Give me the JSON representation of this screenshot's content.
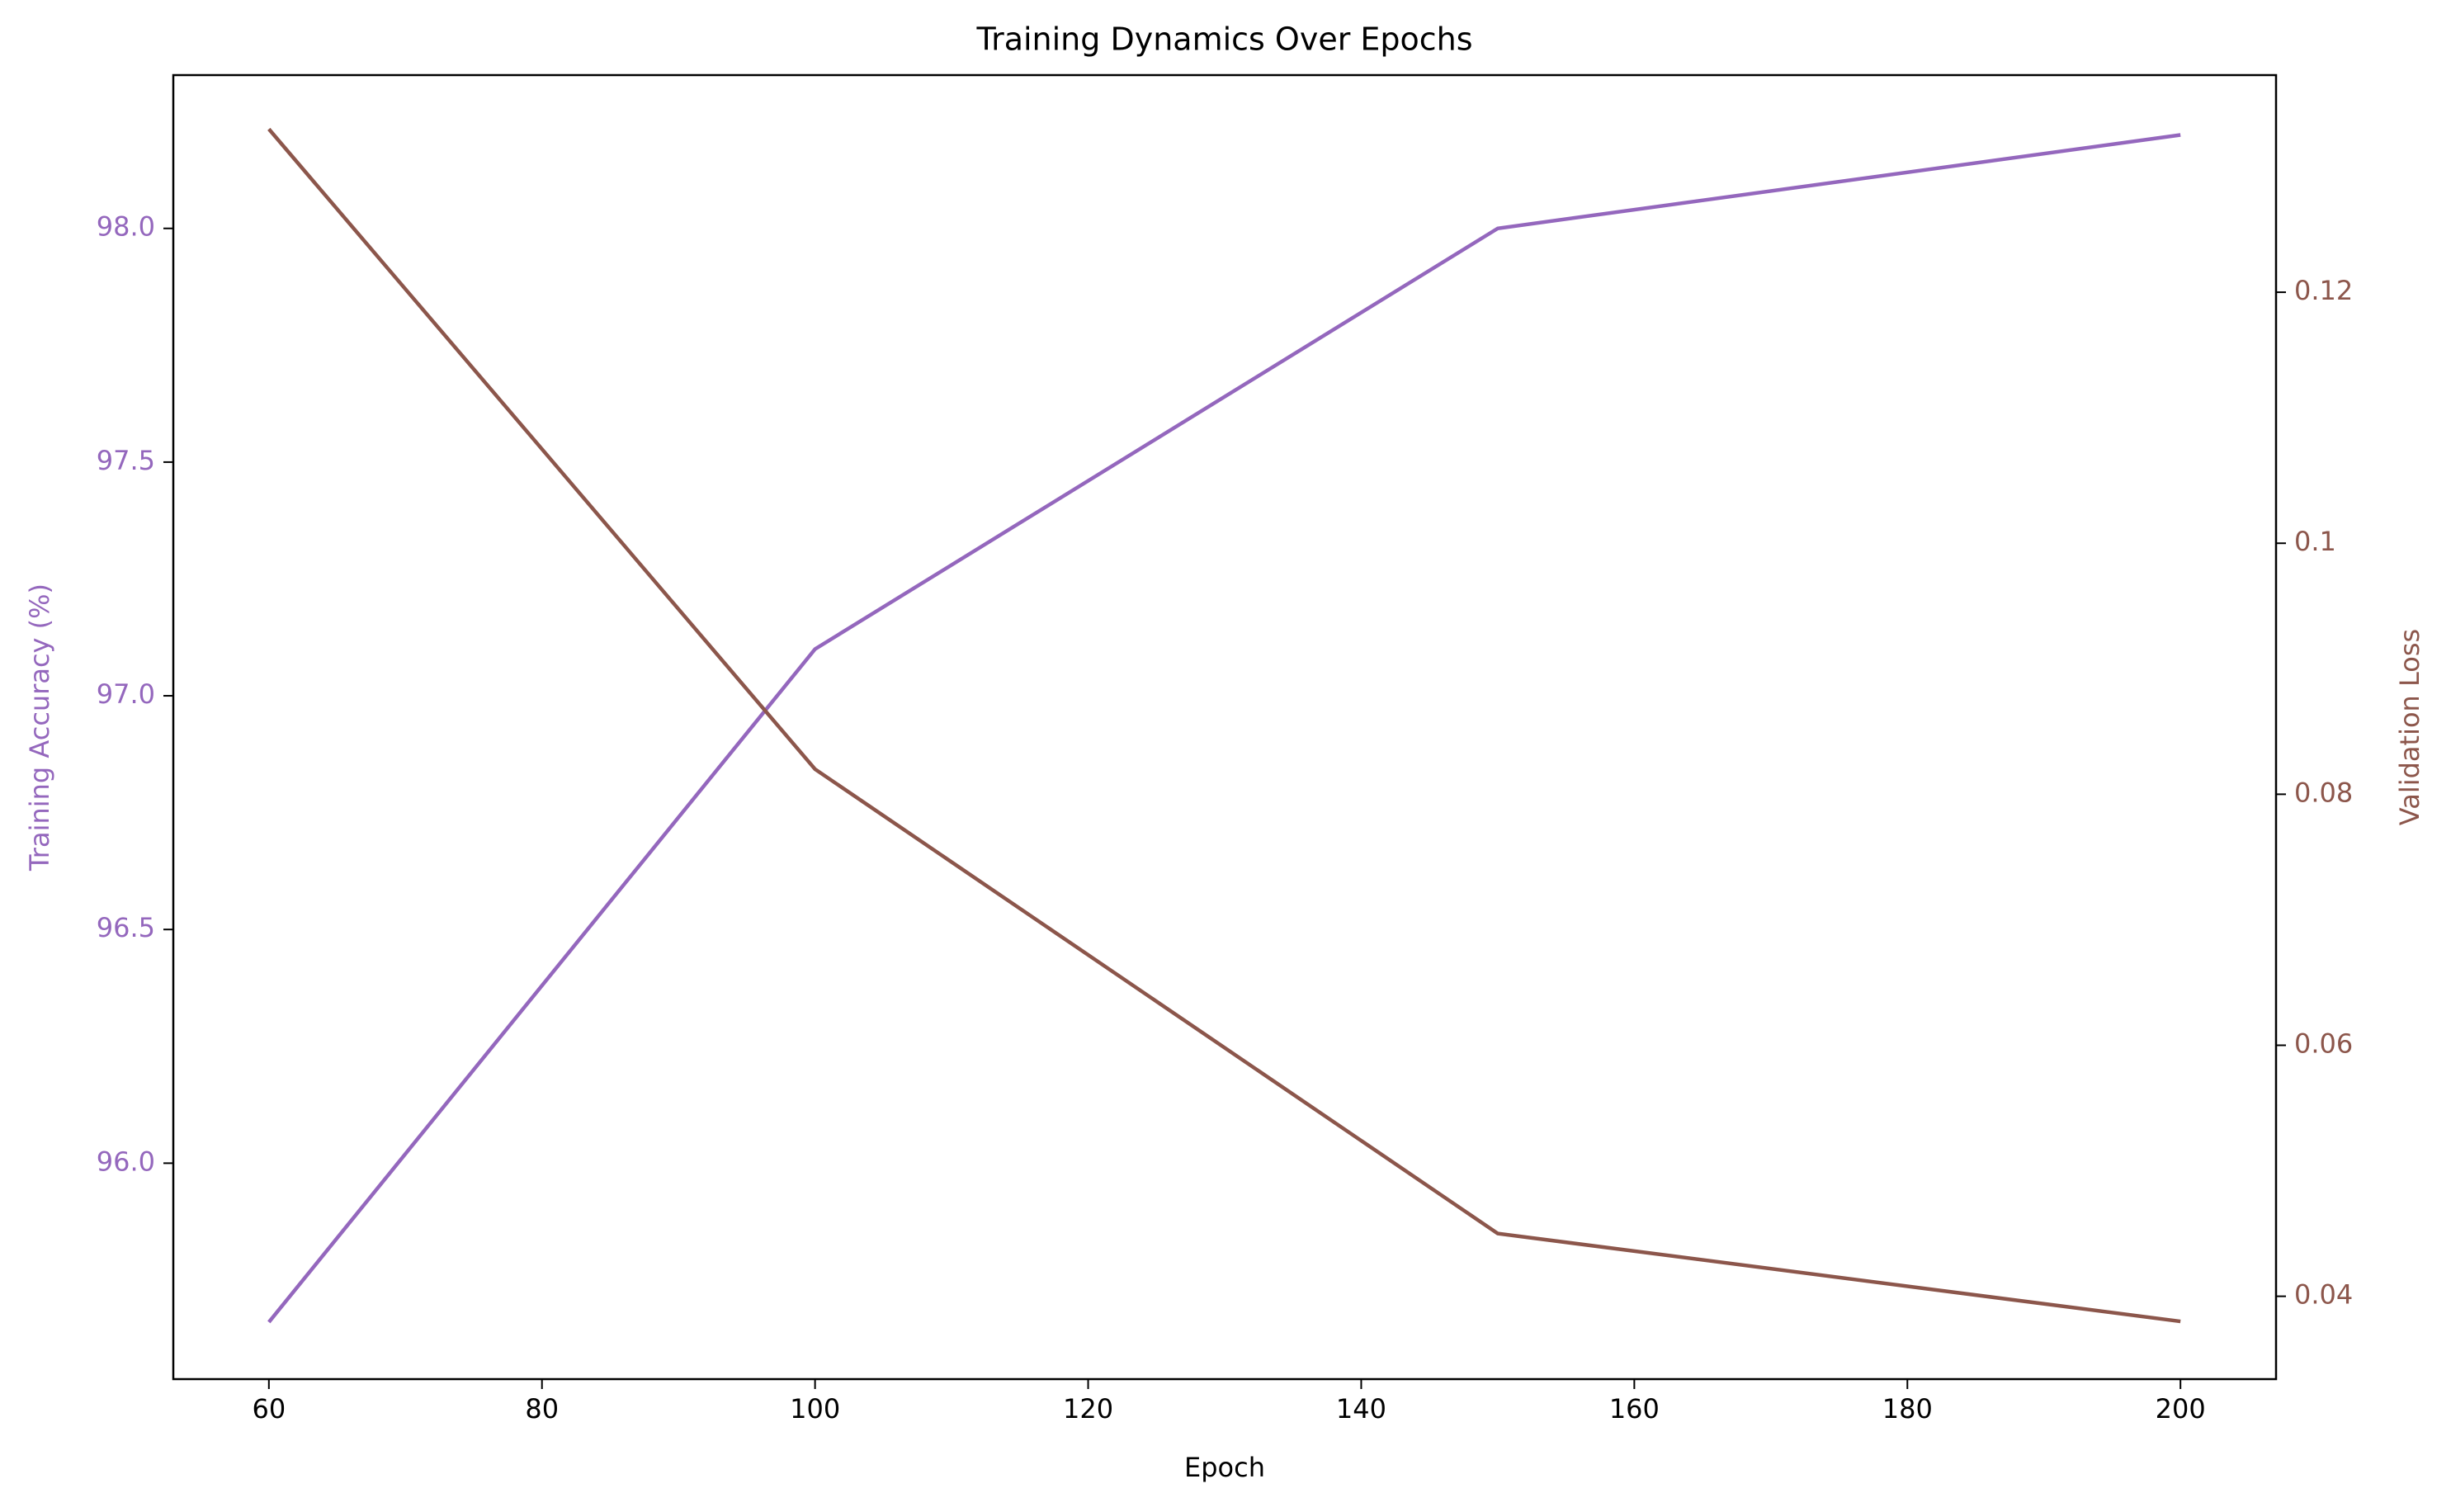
{
  "chart_data": {
    "type": "line",
    "title": "Training Dynamics Over Epochs",
    "x_label": "Epoch",
    "y_label": "Training Accuracy (%)",
    "y2_label": "Validation Loss",
    "x": [
      60,
      100,
      150,
      200
    ],
    "series": [
      {
        "name": "Training Accuracy (%)",
        "color": "#9467bd",
        "values": [
          95.66,
          97.1,
          98.0,
          98.2
        ]
      },
      {
        "name": "Validation Loss",
        "color": "#8c564b",
        "axis": "y2",
        "values": [
          0.133,
          0.082,
          0.045,
          0.038
        ]
      }
    ],
    "xlim": [
      53,
      207
    ],
    "xticks": [
      60,
      80,
      100,
      120,
      140,
      160,
      180,
      200
    ],
    "ylim": [
      95.538,
      98.328
    ],
    "yticks": [
      {
        "value": 96,
        "label": "96.0"
      },
      {
        "value": 96.5,
        "label": "96.5"
      },
      {
        "value": 97,
        "label": "97.0"
      },
      {
        "value": 97.5,
        "label": "97.5"
      },
      {
        "value": 98,
        "label": "98.0"
      }
    ],
    "y2lim": [
      0.0334,
      0.1373
    ],
    "y2ticks": [
      0.04,
      0.06,
      0.08,
      0.1,
      0.12
    ],
    "grid": false
  }
}
